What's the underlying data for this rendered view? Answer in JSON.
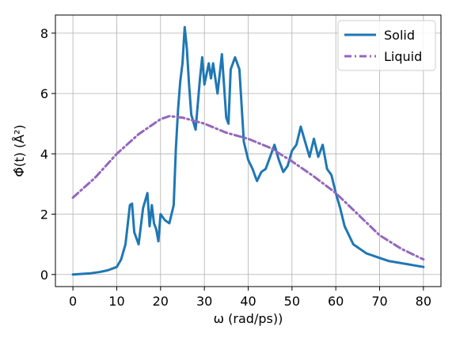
{
  "chart_data": {
    "type": "line",
    "xlabel": "ω (rad/ps))",
    "ylabel": "Φ̂(t) (Å²)",
    "xlim": [
      -4,
      84
    ],
    "ylim": [
      -0.4,
      8.6
    ],
    "xticks": [
      0,
      10,
      20,
      30,
      40,
      50,
      60,
      70,
      80
    ],
    "yticks": [
      0,
      2,
      4,
      6,
      8
    ],
    "grid": true,
    "legend_position": "top-right",
    "series": [
      {
        "name": "Solid",
        "color": "#1f77b4",
        "style": "solid",
        "x": [
          0,
          2,
          4,
          6,
          8,
          10,
          11,
          12,
          13,
          13.5,
          14,
          15,
          16,
          17,
          17.5,
          18,
          18.5,
          19,
          19.5,
          20,
          21,
          22,
          23,
          23.5,
          24,
          24.5,
          25,
          25.5,
          26,
          26.5,
          27,
          28,
          29,
          29.5,
          30,
          31,
          31.5,
          32,
          33,
          34,
          35,
          35.5,
          36,
          37,
          38,
          38.5,
          39,
          40,
          41,
          42,
          43,
          44,
          45,
          46,
          47,
          48,
          49,
          50,
          51,
          52,
          53,
          54,
          55,
          56,
          57,
          58,
          59,
          60,
          61,
          62,
          63,
          64,
          65,
          66,
          67,
          68,
          69,
          70,
          71,
          72,
          74,
          76,
          78,
          80
        ],
        "values": [
          0.0,
          0.02,
          0.04,
          0.08,
          0.14,
          0.25,
          0.5,
          1.0,
          2.3,
          2.35,
          1.4,
          1.0,
          2.2,
          2.7,
          1.6,
          2.3,
          1.7,
          1.5,
          1.1,
          2.0,
          1.8,
          1.7,
          2.3,
          4.2,
          5.5,
          6.4,
          7.0,
          8.2,
          7.5,
          6.3,
          5.3,
          4.8,
          6.5,
          7.2,
          6.3,
          7.0,
          6.5,
          7.0,
          6.0,
          7.3,
          5.2,
          5.0,
          6.8,
          7.2,
          6.8,
          5.6,
          4.4,
          3.8,
          3.5,
          3.1,
          3.4,
          3.5,
          3.9,
          4.3,
          3.8,
          3.4,
          3.6,
          4.1,
          4.3,
          4.9,
          4.4,
          3.9,
          4.5,
          3.9,
          4.3,
          3.5,
          3.3,
          2.7,
          2.2,
          1.6,
          1.3,
          1.0,
          0.9,
          0.8,
          0.7,
          0.65,
          0.6,
          0.55,
          0.5,
          0.45,
          0.4,
          0.35,
          0.3,
          0.25
        ]
      },
      {
        "name": "Liquid",
        "color": "#9467bd",
        "style": "dashdot",
        "x": [
          0,
          5,
          10,
          15,
          20,
          22,
          25,
          30,
          35,
          40,
          45,
          50,
          55,
          60,
          65,
          70,
          75,
          80
        ],
        "values": [
          2.55,
          3.2,
          4.0,
          4.65,
          5.15,
          5.25,
          5.2,
          5.0,
          4.7,
          4.5,
          4.2,
          3.75,
          3.25,
          2.7,
          2.0,
          1.3,
          0.85,
          0.5
        ]
      }
    ]
  }
}
